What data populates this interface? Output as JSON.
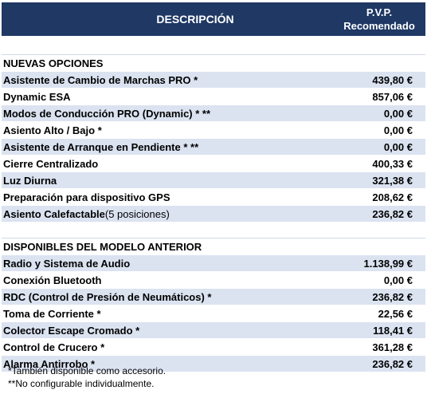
{
  "header": {
    "description_label": "DESCRIPCIÓN",
    "price_label_1": "P.V.P.",
    "price_label_2": "Recomendado"
  },
  "new_options": {
    "title": "NUEVAS OPCIONES",
    "rows": [
      {
        "name": "Asistente de Cambio de Marchas PRO *",
        "suffix": "",
        "price": "439,80 €"
      },
      {
        "name": "Dynamic ESA",
        "suffix": "",
        "price": "857,06 €"
      },
      {
        "name": "Modos de Conducción PRO (Dynamic) *  **",
        "suffix": "",
        "price": "0,00 €"
      },
      {
        "name": "Asiento Alto / Bajo *",
        "suffix": "",
        "price": "0,00 €"
      },
      {
        "name": "Asistente de Arranque en Pendiente *   **",
        "suffix": "",
        "price": "0,00 €"
      },
      {
        "name": "Cierre Centralizado",
        "suffix": "",
        "price": "400,33 €"
      },
      {
        "name": "Luz Diurna",
        "suffix": "",
        "price": "321,38 €"
      },
      {
        "name": "Preparación para dispositivo GPS",
        "suffix": "",
        "price": "208,62 €"
      },
      {
        "name": "Asiento Calefactable",
        "suffix": " (5 posiciones)",
        "price": "236,82 €"
      }
    ]
  },
  "previous_model": {
    "title": "DISPONIBLES DEL MODELO ANTERIOR",
    "rows": [
      {
        "name": "Radio y Sistema de Audio",
        "price": "1.138,99 €"
      },
      {
        "name": "Conexión Bluetooth",
        "price": "0,00 €"
      },
      {
        "name": "RDC (Control de Presión de Neumáticos) *",
        "price": "236,82 €"
      },
      {
        "name": "Toma de Corriente *",
        "price": "22,56 €"
      },
      {
        "name": "Colector Escape Cromado *",
        "price": "118,41 €"
      },
      {
        "name": "Control de Crucero *",
        "price": "361,28 €"
      },
      {
        "name": "Alarma Antirrobo *",
        "price": "236,82 €"
      }
    ]
  },
  "notes": {
    "note1": "*También disponible como accesorio.",
    "note2": "**No configurable individualmente."
  },
  "colors": {
    "header_bg": "#1f3864",
    "row_alt_bg": "#dbe3f1"
  }
}
